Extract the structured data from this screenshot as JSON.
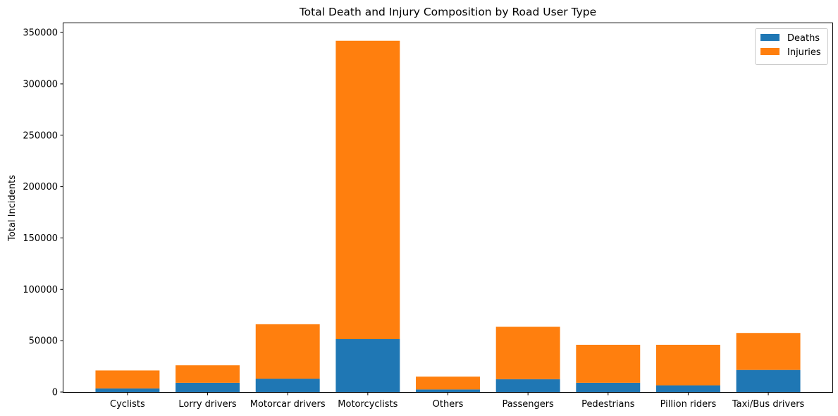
{
  "chart_data": {
    "type": "bar",
    "stacked": true,
    "title": "Total Death and Injury Composition by Road User Type",
    "xlabel": "",
    "ylabel": "Total Incidents",
    "categories": [
      "Cyclists",
      "Lorry drivers",
      "Motorcar drivers",
      "Motorcyclists",
      "Others",
      "Passengers",
      "Pedestrians",
      "Pillion riders",
      "Taxi/Bus drivers"
    ],
    "series": [
      {
        "name": "Deaths",
        "color": "#1f77b4",
        "values": [
          3500,
          9000,
          13000,
          51500,
          2500,
          12500,
          9000,
          6500,
          21500
        ]
      },
      {
        "name": "Injuries",
        "color": "#ff7f0e",
        "values": [
          17500,
          17000,
          53000,
          290500,
          12500,
          51000,
          37000,
          39500,
          36000
        ]
      }
    ],
    "ylim": [
      0,
      359000
    ],
    "yticks": [
      0,
      50000,
      100000,
      150000,
      200000,
      250000,
      300000,
      350000
    ],
    "ytick_labels": [
      "0",
      "50000",
      "100000",
      "150000",
      "200000",
      "250000",
      "300000",
      "350000"
    ],
    "legend": {
      "position": "top-right",
      "labels": [
        "Deaths",
        "Injuries"
      ]
    },
    "grid": false
  }
}
